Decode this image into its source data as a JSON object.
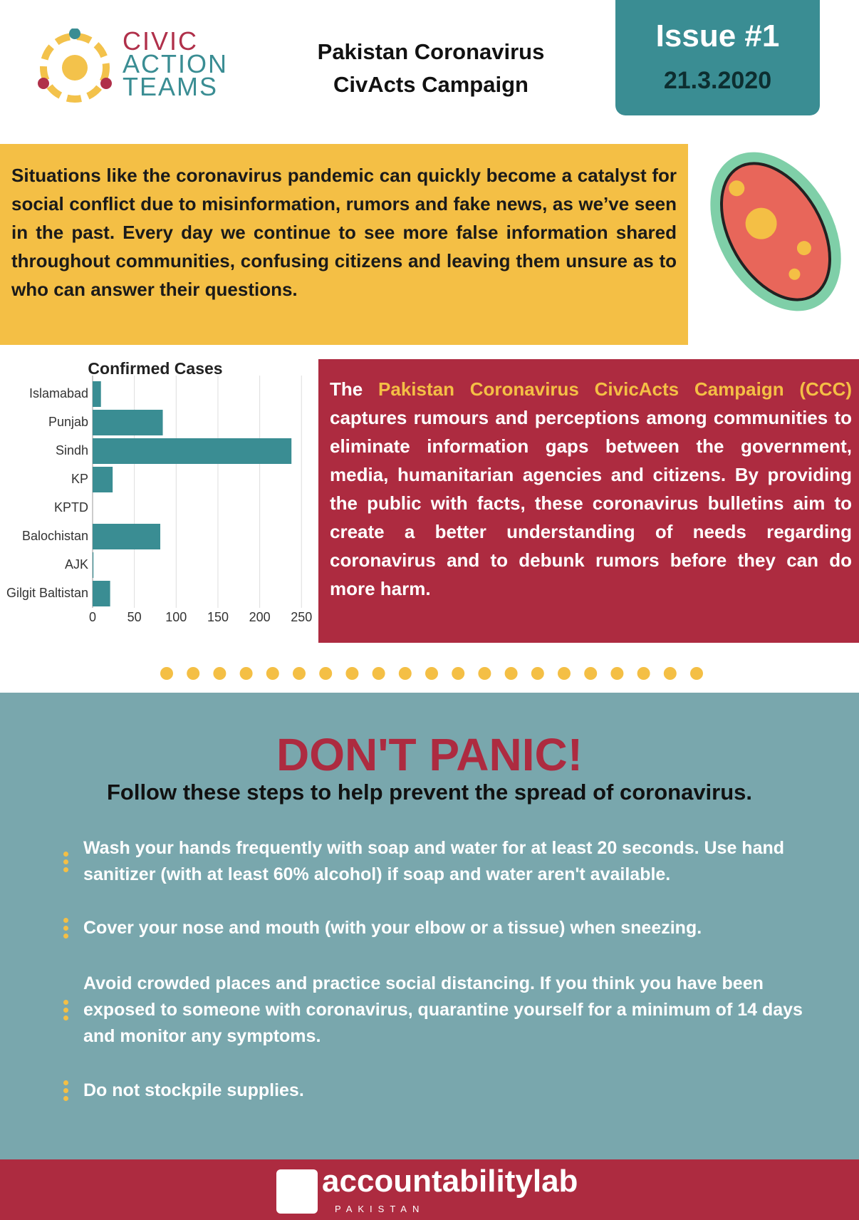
{
  "header": {
    "logo": [
      "CIVIC",
      "ACTION",
      "TEAMS"
    ],
    "title_lines": [
      "Pakistan Coronavirus",
      "CivActs Campaign"
    ],
    "issue": "Issue #1",
    "date": "21.3.2020"
  },
  "intro": "Situations like the coronavirus pandemic can quickly become a catalyst for social conflict due to misinformation, rumors and fake news, as we’ve seen in the past. Every day we continue to see more false information shared throughout communities, confusing citizens and leaving them unsure as to who can answer their questions.",
  "chart_data": {
    "type": "bar",
    "orientation": "horizontal",
    "title": "Confirmed Cases",
    "categories": [
      "Islamabad",
      "Punjab",
      "Sindh",
      "KP",
      "KPTD",
      "Balochistan",
      "AJK",
      "Gilgit Baltistan"
    ],
    "values": [
      10,
      84,
      238,
      24,
      0,
      81,
      1,
      21
    ],
    "color": "#3a8d93",
    "xlim": [
      0,
      260
    ],
    "xticks": [
      0,
      50,
      100,
      150,
      200,
      250
    ],
    "grid": true
  },
  "campaign": {
    "before": "The",
    "highlight": "Pakistan Coronavirus CivicActs Campaign (CCC)",
    "after": "captures rumours and perceptions among communities to eliminate information gaps between the government, media, humanitarian agencies and citizens. By providing the public with facts, these coronavirus bulletins aim to create a better understanding of needs regarding coronavirus and to debunk rumors before they can do more harm."
  },
  "panic": {
    "heading": "DON'T PANIC!",
    "subheading": "Follow these steps to help prevent the spread of coronavirus."
  },
  "steps": [
    "Wash your hands frequently with soap and water for at least 20 seconds. Use hand sanitizer (with at least 60% alcohol) if soap and water aren't available.",
    "Cover your nose and mouth (with your elbow or a tissue) when sneezing.",
    "Avoid crowded places and practice social distancing. If you think you have been exposed to someone with coronavirus, quarantine yourself for a minimum of 14 days and monitor any symptoms.",
    "Do not stockpile supplies."
  ],
  "footer": {
    "brand": "accountabilitylab",
    "country": "PAKISTAN"
  }
}
